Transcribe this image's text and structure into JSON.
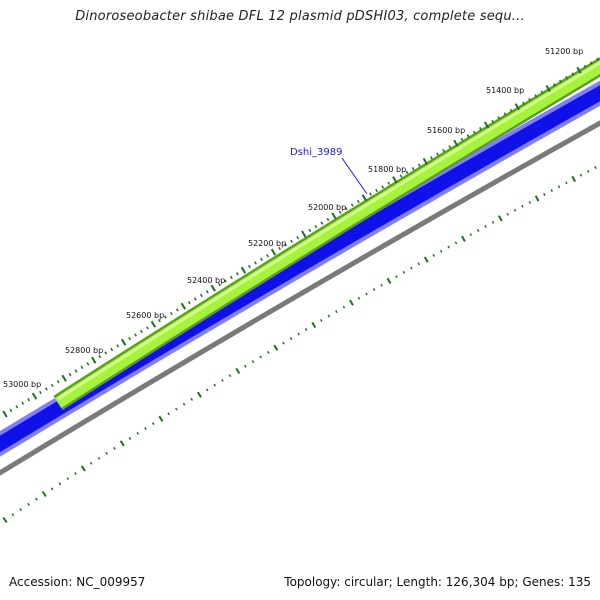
{
  "title": "Dinoroseobacter shibae DFL 12 plasmid pDSHI03, complete sequ...",
  "map": {
    "tick_labels": [
      "51200 bp",
      "51400 bp",
      "51600 bp",
      "51800 bp",
      "52000 bp",
      "52200 bp",
      "52400 bp",
      "52600 bp",
      "52800 bp",
      "53000 bp"
    ],
    "gene_label": "Dshi_3989",
    "colors": {
      "gene_track": "#a6f23c",
      "gene_track_border": "#5aa01e",
      "backbone": "#1010e8",
      "backbone_light": "#8080ff",
      "outer_ring": "#7a7a7a",
      "ticks": "#207020",
      "gene_label": "#1a1ad8"
    }
  },
  "footer": {
    "accession": "Accession: NC_009957",
    "stats": "Topology: circular; Length: 126,304 bp; Genes: 135"
  }
}
